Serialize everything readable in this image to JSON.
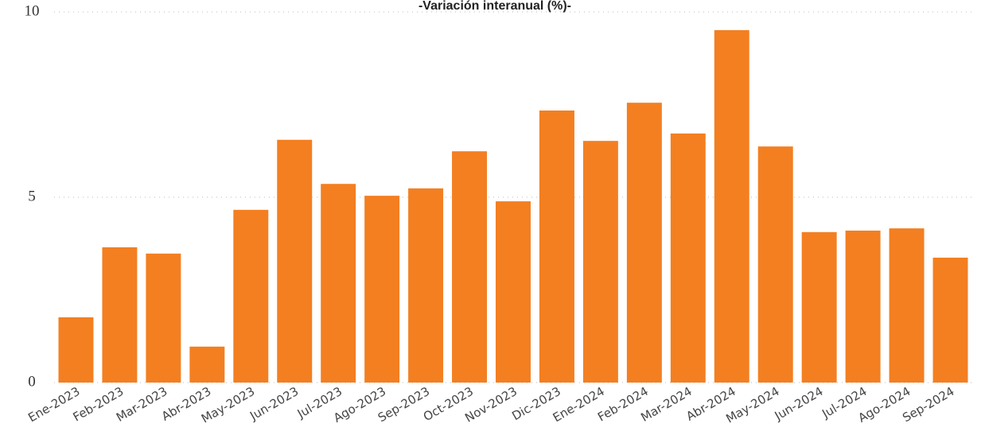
{
  "chart_data": {
    "type": "bar",
    "title": "-Variación interanual (%)-",
    "categories": [
      "Ene-2023",
      "Feb-2023",
      "Mar-2023",
      "Abr-2023",
      "May-2023",
      "Jun-2023",
      "Jul-2023",
      "Ago-2023",
      "Sep-2023",
      "Oct-2023",
      "Nov-2023",
      "Dic-2023",
      "Ene-2024",
      "Feb-2024",
      "Mar-2024",
      "Abr-2024",
      "May-2024",
      "Jun-2024",
      "Jul-2024",
      "Ago-2024",
      "Sep-2024"
    ],
    "values": [
      1.76,
      3.65,
      3.48,
      0.97,
      4.66,
      6.55,
      5.36,
      5.04,
      5.24,
      6.24,
      4.89,
      7.34,
      6.52,
      7.55,
      6.72,
      9.51,
      6.37,
      4.06,
      4.1,
      4.16,
      3.37
    ],
    "color": "#f37f21",
    "ylim": [
      0,
      10
    ],
    "yticks": [
      0,
      5,
      10
    ],
    "grid": true
  }
}
